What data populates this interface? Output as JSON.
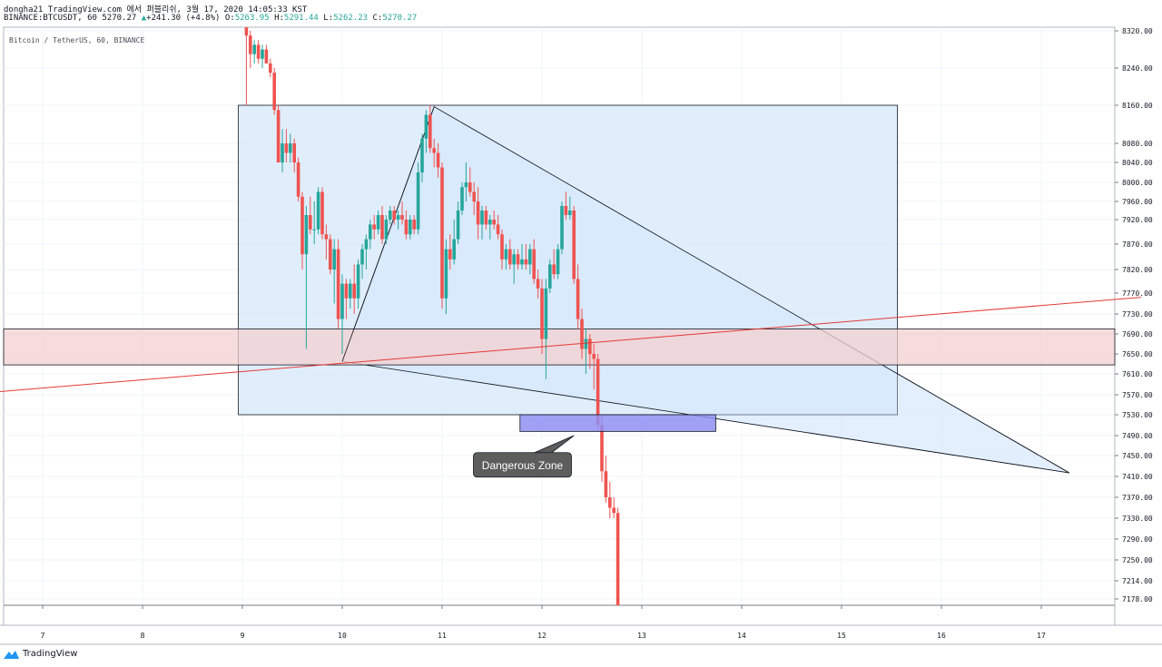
{
  "header": {
    "line1": "dongha21 TradingView.com 에서 퍼블리쉬, 3월 17, 2020 14:05:33 KST",
    "symbol": "BINANCE:BTCUSDT, 60",
    "last": "5270.27",
    "arrow": "▲",
    "change": "+241.30 (+4.8%)",
    "o_label": "O:",
    "o": "5263.95",
    "h_label": "H:",
    "h": "5291.44",
    "l_label": "L:",
    "l": "5262.23",
    "c_label": "C:",
    "c": "5270.27"
  },
  "brand": {
    "name": "TradingView"
  },
  "colors": {
    "up": "#26a69a",
    "down": "#ef5350",
    "grid": "#f0f3fa",
    "box_fill": "#d6e8fb",
    "zone_fill": "#f3d0d0",
    "danger_fill": "#8f8ff3",
    "trend_line": "#e53935",
    "callout_bg": "#5d5d5d"
  },
  "chart_data": {
    "type": "candlestick",
    "title": "Bitcoin / TetherUS, 60, BINANCE",
    "x_ticks": [
      "7",
      "8",
      "9",
      "10",
      "11",
      "12",
      "13",
      "14",
      "15",
      "16",
      "17"
    ],
    "x_tick_values": [
      7,
      8,
      9,
      10,
      11,
      12,
      13,
      14,
      15,
      16,
      17
    ],
    "y_ticks": [
      "8320.00",
      "8240.00",
      "8160.00",
      "8080.00",
      "8040.00",
      "8000.00",
      "7960.00",
      "7920.00",
      "7870.00",
      "7820.00",
      "7770.00",
      "7730.00",
      "7690.00",
      "7650.00",
      "7610.00",
      "7570.00",
      "7530.00",
      "7490.00",
      "7450.00",
      "7410.00",
      "7370.00",
      "7330.00",
      "7290.00",
      "7250.00",
      "7214.00",
      "7178.00"
    ],
    "candles": [
      {
        "t": 9.04,
        "o": 8330,
        "h": 8330,
        "l": 8160,
        "c": 8310
      },
      {
        "t": 9.08,
        "o": 8310,
        "h": 8320,
        "l": 8240,
        "c": 8270
      },
      {
        "t": 9.12,
        "o": 8270,
        "h": 8300,
        "l": 8250,
        "c": 8290
      },
      {
        "t": 9.16,
        "o": 8290,
        "h": 8300,
        "l": 8250,
        "c": 8260
      },
      {
        "t": 9.2,
        "o": 8260,
        "h": 8290,
        "l": 8240,
        "c": 8280
      },
      {
        "t": 9.24,
        "o": 8280,
        "h": 8290,
        "l": 8250,
        "c": 8250
      },
      {
        "t": 9.28,
        "o": 8250,
        "h": 8260,
        "l": 8220,
        "c": 8230
      },
      {
        "t": 9.32,
        "o": 8230,
        "h": 8240,
        "l": 8140,
        "c": 8150
      },
      {
        "t": 9.36,
        "o": 8150,
        "h": 8160,
        "l": 8040,
        "c": 8040
      },
      {
        "t": 9.4,
        "o": 8040,
        "h": 8110,
        "l": 8020,
        "c": 8080
      },
      {
        "t": 9.44,
        "o": 8080,
        "h": 8110,
        "l": 8040,
        "c": 8060
      },
      {
        "t": 9.48,
        "o": 8060,
        "h": 8100,
        "l": 8040,
        "c": 8080
      },
      {
        "t": 9.52,
        "o": 8080,
        "h": 8090,
        "l": 8020,
        "c": 8040
      },
      {
        "t": 9.56,
        "o": 8040,
        "h": 8050,
        "l": 7960,
        "c": 7970
      },
      {
        "t": 9.6,
        "o": 7970,
        "h": 7980,
        "l": 7820,
        "c": 7850
      },
      {
        "t": 9.64,
        "o": 7850,
        "h": 7950,
        "l": 7660,
        "c": 7930
      },
      {
        "t": 9.68,
        "o": 7930,
        "h": 7970,
        "l": 7890,
        "c": 7900
      },
      {
        "t": 9.72,
        "o": 7900,
        "h": 7960,
        "l": 7870,
        "c": 7900
      },
      {
        "t": 9.76,
        "o": 7900,
        "h": 7990,
        "l": 7890,
        "c": 7980
      },
      {
        "t": 9.8,
        "o": 7980,
        "h": 7990,
        "l": 7880,
        "c": 7890
      },
      {
        "t": 9.84,
        "o": 7890,
        "h": 7910,
        "l": 7840,
        "c": 7880
      },
      {
        "t": 9.88,
        "o": 7880,
        "h": 7890,
        "l": 7810,
        "c": 7820
      },
      {
        "t": 9.92,
        "o": 7820,
        "h": 7880,
        "l": 7750,
        "c": 7860
      },
      {
        "t": 9.96,
        "o": 7860,
        "h": 7880,
        "l": 7700,
        "c": 7720
      },
      {
        "t": 10.0,
        "o": 7720,
        "h": 7810,
        "l": 7650,
        "c": 7790
      },
      {
        "t": 10.04,
        "o": 7790,
        "h": 7800,
        "l": 7720,
        "c": 7760
      },
      {
        "t": 10.08,
        "o": 7760,
        "h": 7800,
        "l": 7740,
        "c": 7790
      },
      {
        "t": 10.12,
        "o": 7790,
        "h": 7830,
        "l": 7730,
        "c": 7760
      },
      {
        "t": 10.16,
        "o": 7760,
        "h": 7840,
        "l": 7740,
        "c": 7830
      },
      {
        "t": 10.2,
        "o": 7830,
        "h": 7870,
        "l": 7800,
        "c": 7860
      },
      {
        "t": 10.24,
        "o": 7860,
        "h": 7890,
        "l": 7820,
        "c": 7880
      },
      {
        "t": 10.28,
        "o": 7880,
        "h": 7920,
        "l": 7860,
        "c": 7910
      },
      {
        "t": 10.32,
        "o": 7910,
        "h": 7930,
        "l": 7880,
        "c": 7900
      },
      {
        "t": 10.36,
        "o": 7900,
        "h": 7940,
        "l": 7890,
        "c": 7930
      },
      {
        "t": 10.4,
        "o": 7930,
        "h": 7950,
        "l": 7870,
        "c": 7880
      },
      {
        "t": 10.44,
        "o": 7880,
        "h": 7930,
        "l": 7870,
        "c": 7920
      },
      {
        "t": 10.48,
        "o": 7920,
        "h": 7950,
        "l": 7910,
        "c": 7940
      },
      {
        "t": 10.52,
        "o": 7940,
        "h": 7950,
        "l": 7910,
        "c": 7920
      },
      {
        "t": 10.56,
        "o": 7920,
        "h": 7940,
        "l": 7900,
        "c": 7930
      },
      {
        "t": 10.6,
        "o": 7930,
        "h": 7960,
        "l": 7910,
        "c": 7920
      },
      {
        "t": 10.64,
        "o": 7920,
        "h": 7940,
        "l": 7880,
        "c": 7890
      },
      {
        "t": 10.68,
        "o": 7890,
        "h": 7930,
        "l": 7880,
        "c": 7920
      },
      {
        "t": 10.72,
        "o": 7920,
        "h": 7930,
        "l": 7890,
        "c": 7900
      },
      {
        "t": 10.76,
        "o": 7900,
        "h": 8040,
        "l": 7890,
        "c": 8020
      },
      {
        "t": 10.8,
        "o": 8020,
        "h": 8100,
        "l": 8000,
        "c": 8090
      },
      {
        "t": 10.84,
        "o": 8090,
        "h": 8150,
        "l": 8060,
        "c": 8140
      },
      {
        "t": 10.88,
        "o": 8140,
        "h": 8160,
        "l": 8060,
        "c": 8070
      },
      {
        "t": 10.92,
        "o": 8070,
        "h": 8090,
        "l": 8030,
        "c": 8060
      },
      {
        "t": 10.96,
        "o": 8060,
        "h": 8080,
        "l": 8010,
        "c": 8030
      },
      {
        "t": 11.0,
        "o": 8030,
        "h": 8040,
        "l": 7740,
        "c": 7760
      },
      {
        "t": 11.04,
        "o": 7760,
        "h": 7880,
        "l": 7730,
        "c": 7860
      },
      {
        "t": 11.08,
        "o": 7860,
        "h": 7890,
        "l": 7820,
        "c": 7840
      },
      {
        "t": 11.12,
        "o": 7840,
        "h": 7920,
        "l": 7830,
        "c": 7880
      },
      {
        "t": 11.16,
        "o": 7880,
        "h": 7960,
        "l": 7870,
        "c": 7940
      },
      {
        "t": 11.2,
        "o": 7940,
        "h": 8000,
        "l": 7930,
        "c": 7990
      },
      {
        "t": 11.24,
        "o": 7990,
        "h": 8040,
        "l": 7960,
        "c": 8000
      },
      {
        "t": 11.28,
        "o": 8000,
        "h": 8030,
        "l": 7970,
        "c": 7980
      },
      {
        "t": 11.32,
        "o": 7980,
        "h": 8000,
        "l": 7930,
        "c": 7960
      },
      {
        "t": 11.36,
        "o": 7960,
        "h": 7990,
        "l": 7880,
        "c": 7910
      },
      {
        "t": 11.4,
        "o": 7910,
        "h": 7950,
        "l": 7880,
        "c": 7940
      },
      {
        "t": 11.44,
        "o": 7940,
        "h": 7950,
        "l": 7900,
        "c": 7910
      },
      {
        "t": 11.48,
        "o": 7910,
        "h": 7930,
        "l": 7880,
        "c": 7920
      },
      {
        "t": 11.52,
        "o": 7920,
        "h": 7940,
        "l": 7900,
        "c": 7910
      },
      {
        "t": 11.56,
        "o": 7910,
        "h": 7930,
        "l": 7880,
        "c": 7890
      },
      {
        "t": 11.6,
        "o": 7890,
        "h": 7900,
        "l": 7820,
        "c": 7840
      },
      {
        "t": 11.64,
        "o": 7840,
        "h": 7870,
        "l": 7820,
        "c": 7860
      },
      {
        "t": 11.68,
        "o": 7860,
        "h": 7880,
        "l": 7820,
        "c": 7830
      },
      {
        "t": 11.72,
        "o": 7830,
        "h": 7860,
        "l": 7790,
        "c": 7850
      },
      {
        "t": 11.76,
        "o": 7850,
        "h": 7860,
        "l": 7820,
        "c": 7830
      },
      {
        "t": 11.8,
        "o": 7830,
        "h": 7870,
        "l": 7820,
        "c": 7840
      },
      {
        "t": 11.84,
        "o": 7840,
        "h": 7870,
        "l": 7820,
        "c": 7830
      },
      {
        "t": 11.88,
        "o": 7830,
        "h": 7870,
        "l": 7810,
        "c": 7860
      },
      {
        "t": 11.92,
        "o": 7860,
        "h": 7880,
        "l": 7790,
        "c": 7800
      },
      {
        "t": 11.96,
        "o": 7800,
        "h": 7820,
        "l": 7760,
        "c": 7780
      },
      {
        "t": 12.0,
        "o": 7780,
        "h": 7800,
        "l": 7650,
        "c": 7680
      },
      {
        "t": 12.04,
        "o": 7680,
        "h": 7800,
        "l": 7600,
        "c": 7780
      },
      {
        "t": 12.08,
        "o": 7780,
        "h": 7840,
        "l": 7770,
        "c": 7830
      },
      {
        "t": 12.12,
        "o": 7830,
        "h": 7860,
        "l": 7800,
        "c": 7810
      },
      {
        "t": 12.16,
        "o": 7810,
        "h": 7870,
        "l": 7800,
        "c": 7860
      },
      {
        "t": 12.2,
        "o": 7860,
        "h": 7960,
        "l": 7850,
        "c": 7950
      },
      {
        "t": 12.24,
        "o": 7950,
        "h": 7980,
        "l": 7920,
        "c": 7930
      },
      {
        "t": 12.28,
        "o": 7930,
        "h": 7970,
        "l": 7920,
        "c": 7940
      },
      {
        "t": 12.32,
        "o": 7940,
        "h": 7950,
        "l": 7790,
        "c": 7800
      },
      {
        "t": 12.36,
        "o": 7800,
        "h": 7830,
        "l": 7700,
        "c": 7720
      },
      {
        "t": 12.4,
        "o": 7720,
        "h": 7740,
        "l": 7640,
        "c": 7660
      },
      {
        "t": 12.44,
        "o": 7660,
        "h": 7700,
        "l": 7610,
        "c": 7680
      },
      {
        "t": 12.48,
        "o": 7680,
        "h": 7690,
        "l": 7620,
        "c": 7650
      },
      {
        "t": 12.52,
        "o": 7650,
        "h": 7670,
        "l": 7580,
        "c": 7640
      },
      {
        "t": 12.56,
        "o": 7640,
        "h": 7650,
        "l": 7500,
        "c": 7510
      },
      {
        "t": 12.6,
        "o": 7510,
        "h": 7530,
        "l": 7400,
        "c": 7420
      },
      {
        "t": 12.64,
        "o": 7420,
        "h": 7450,
        "l": 7360,
        "c": 7370
      },
      {
        "t": 12.68,
        "o": 7370,
        "h": 7400,
        "l": 7330,
        "c": 7350
      },
      {
        "t": 12.72,
        "o": 7350,
        "h": 7370,
        "l": 7330,
        "c": 7340
      },
      {
        "t": 12.76,
        "o": 7340,
        "h": 7350,
        "l": 7150,
        "c": 7150
      }
    ],
    "annotations": [
      {
        "kind": "rect",
        "label": "range-box",
        "t1": 8.96,
        "t2": 15.56,
        "p1": 8160,
        "p2": 7530
      },
      {
        "kind": "hband",
        "label": "resistance-zone",
        "p1": 7700,
        "p2": 7628
      },
      {
        "kind": "rect",
        "label": "dangerous-box",
        "t1": 11.78,
        "t2": 13.74,
        "p1": 7530,
        "p2": 7505
      },
      {
        "kind": "triangle",
        "label": "pattern",
        "points": [
          [
            10.0,
            7635
          ],
          [
            10.92,
            8157
          ],
          [
            17.28,
            7417
          ]
        ]
      },
      {
        "kind": "line",
        "label": "trend-line",
        "points": [
          [
            6.5,
            7575
          ],
          [
            18.0,
            7762
          ]
        ]
      },
      {
        "kind": "line",
        "label": "apex-line",
        "points": [
          [
            10.0,
            7635
          ],
          [
            10.92,
            8157
          ]
        ]
      }
    ],
    "callout": {
      "text": "Dangerous Zone",
      "t": 11.45,
      "p": 7440,
      "anchor_t": 12.32,
      "anchor_p": 7490
    }
  }
}
